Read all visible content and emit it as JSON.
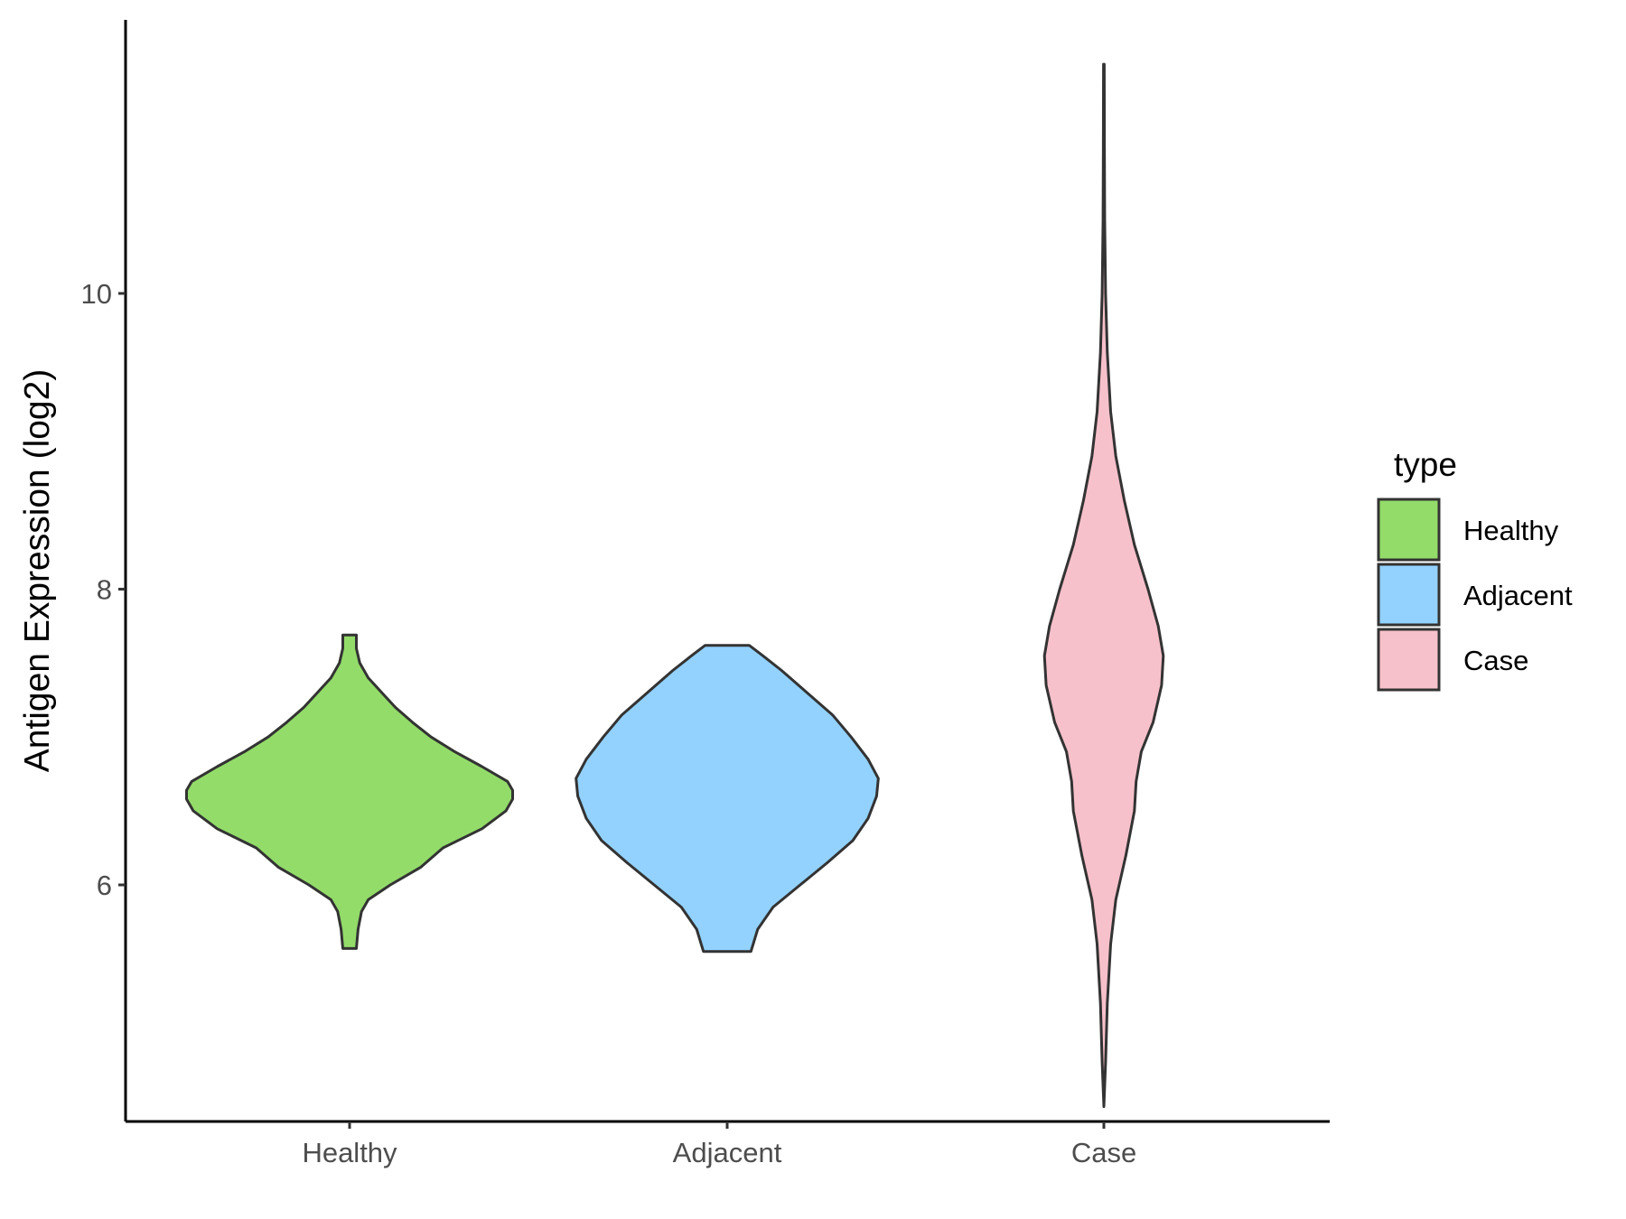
{
  "chart_data": {
    "type": "violin",
    "categories": [
      "Healthy",
      "Adjacent",
      "Case"
    ],
    "ylabel": "Antigen Expression (log2)",
    "xlabel": "",
    "ylim": [
      4.4,
      11.85
    ],
    "yticks": [
      6,
      8,
      10
    ],
    "grid": false,
    "legend": {
      "title": "type",
      "placement": "right",
      "entries": [
        "Healthy",
        "Adjacent",
        "Case"
      ]
    },
    "colors": {
      "Healthy": "#93dc6a",
      "Adjacent": "#93d2fe",
      "Case": "#f7c1cb",
      "outline": "#333333"
    },
    "series": [
      {
        "category": "Healthy",
        "min": 5.57,
        "max": 7.69,
        "profile": [
          [
            5.57,
            0.04
          ],
          [
            5.7,
            0.05
          ],
          [
            5.82,
            0.07
          ],
          [
            5.9,
            0.11
          ],
          [
            6.0,
            0.24
          ],
          [
            6.12,
            0.42
          ],
          [
            6.25,
            0.55
          ],
          [
            6.38,
            0.78
          ],
          [
            6.5,
            0.92
          ],
          [
            6.58,
            0.96
          ],
          [
            6.64,
            0.96
          ],
          [
            6.7,
            0.93
          ],
          [
            6.8,
            0.78
          ],
          [
            6.9,
            0.62
          ],
          [
            7.0,
            0.48
          ],
          [
            7.1,
            0.37
          ],
          [
            7.2,
            0.27
          ],
          [
            7.3,
            0.19
          ],
          [
            7.4,
            0.11
          ],
          [
            7.5,
            0.06
          ],
          [
            7.6,
            0.04
          ],
          [
            7.69,
            0.04
          ]
        ]
      },
      {
        "category": "Adjacent",
        "min": 5.55,
        "max": 7.62,
        "profile": [
          [
            5.55,
            0.14
          ],
          [
            5.7,
            0.18
          ],
          [
            5.85,
            0.27
          ],
          [
            6.0,
            0.43
          ],
          [
            6.15,
            0.59
          ],
          [
            6.3,
            0.74
          ],
          [
            6.45,
            0.83
          ],
          [
            6.6,
            0.88
          ],
          [
            6.72,
            0.89
          ],
          [
            6.85,
            0.83
          ],
          [
            7.0,
            0.73
          ],
          [
            7.15,
            0.62
          ],
          [
            7.3,
            0.47
          ],
          [
            7.45,
            0.32
          ],
          [
            7.55,
            0.21
          ],
          [
            7.62,
            0.13
          ]
        ]
      },
      {
        "category": "Case",
        "min": 4.5,
        "max": 11.55,
        "profile": [
          [
            4.5,
            0.0
          ],
          [
            4.8,
            0.01
          ],
          [
            5.2,
            0.02
          ],
          [
            5.6,
            0.04
          ],
          [
            5.9,
            0.07
          ],
          [
            6.2,
            0.13
          ],
          [
            6.5,
            0.18
          ],
          [
            6.7,
            0.19
          ],
          [
            6.9,
            0.22
          ],
          [
            7.1,
            0.29
          ],
          [
            7.35,
            0.34
          ],
          [
            7.55,
            0.35
          ],
          [
            7.75,
            0.32
          ],
          [
            8.0,
            0.26
          ],
          [
            8.3,
            0.18
          ],
          [
            8.6,
            0.12
          ],
          [
            8.9,
            0.07
          ],
          [
            9.2,
            0.04
          ],
          [
            9.6,
            0.02
          ],
          [
            10.0,
            0.01
          ],
          [
            10.5,
            0.005
          ],
          [
            11.0,
            0.003
          ],
          [
            11.55,
            0.002
          ]
        ]
      }
    ]
  }
}
